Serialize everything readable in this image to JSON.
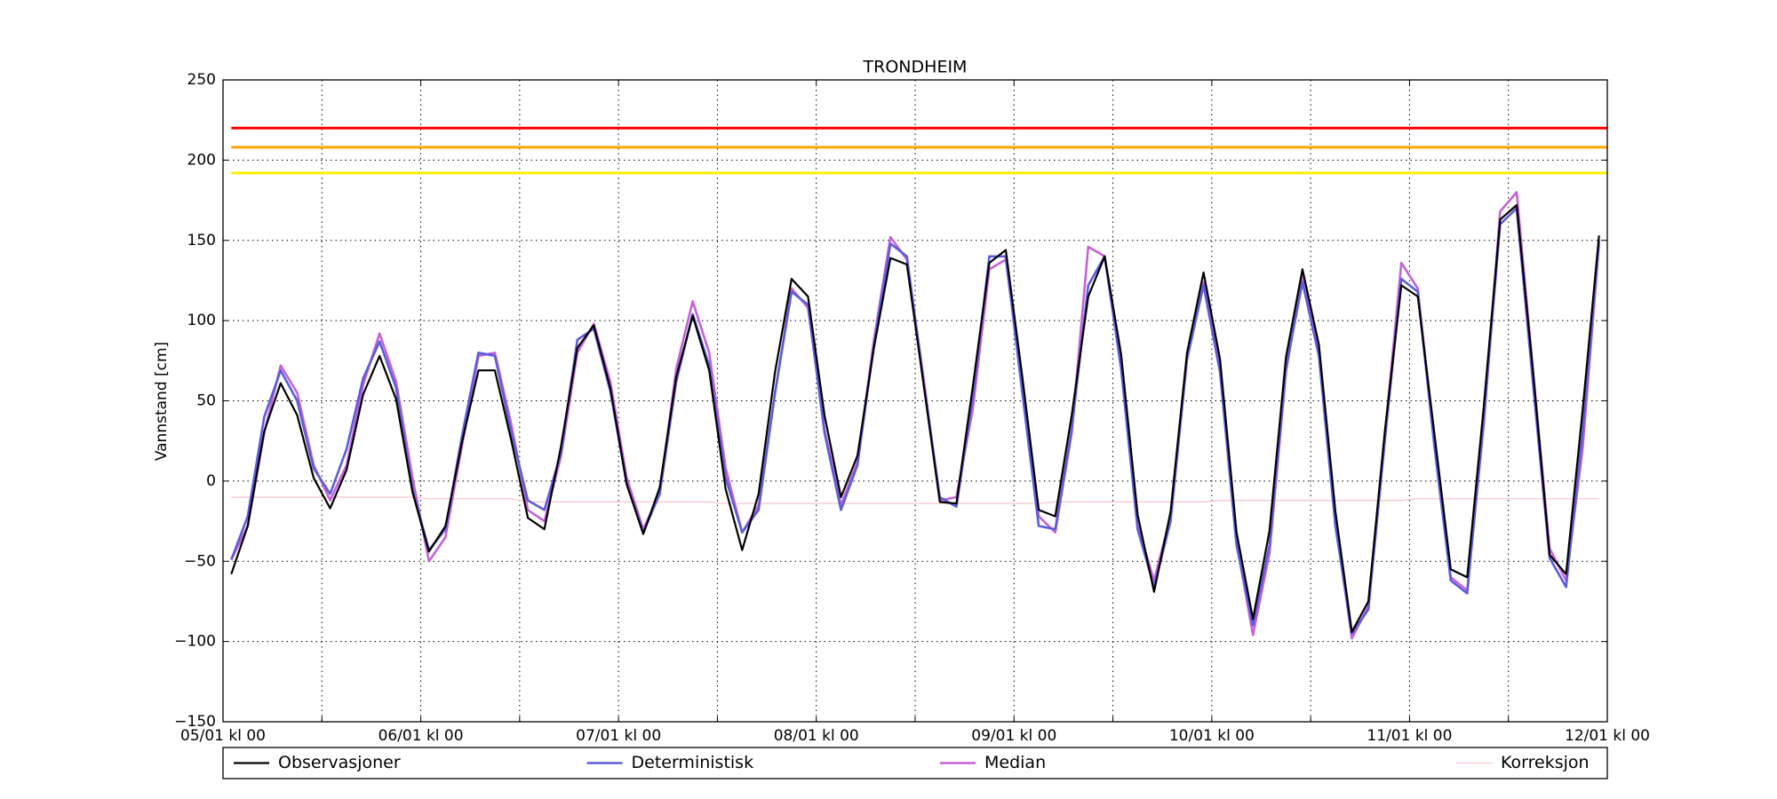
{
  "chart_data": {
    "type": "line",
    "title": "TRONDHEIM",
    "ylabel": "Vannstand [cm]",
    "xlim": [
      0,
      168
    ],
    "ylim": [
      -150,
      250
    ],
    "xticks": [
      {
        "value": 0,
        "label": "05/01 kl 00"
      },
      {
        "value": 24,
        "label": "06/01 kl 00"
      },
      {
        "value": 48,
        "label": "07/01 kl 00"
      },
      {
        "value": 72,
        "label": "08/01 kl 00"
      },
      {
        "value": 96,
        "label": "09/01 kl 00"
      },
      {
        "value": 120,
        "label": "10/01 kl 00"
      },
      {
        "value": 144,
        "label": "11/01 kl 00"
      },
      {
        "value": 168,
        "label": "12/01 kl 00"
      }
    ],
    "xminorticks": [
      12,
      36,
      60,
      84,
      108,
      132,
      156
    ],
    "yticks": [
      {
        "value": -150,
        "label": "−150"
      },
      {
        "value": -100,
        "label": "−100"
      },
      {
        "value": -50,
        "label": "−50"
      },
      0,
      50,
      100,
      150,
      200,
      250
    ],
    "grid": true,
    "legend": "bottom",
    "hlines": [
      {
        "value": 220,
        "color": "#ff0000"
      },
      {
        "value": 208,
        "color": "#ffa500"
      },
      {
        "value": 192,
        "color": "#ffee00"
      }
    ],
    "x": [
      1,
      3,
      5,
      7,
      9,
      11,
      13,
      15,
      17,
      19,
      21,
      23,
      25,
      27,
      29,
      31,
      33,
      35,
      37,
      39,
      41,
      43,
      45,
      47,
      49,
      51,
      53,
      55,
      57,
      59,
      61,
      63,
      65,
      67,
      69,
      71,
      73,
      75,
      77,
      79,
      81,
      83,
      85,
      87,
      89,
      91,
      93,
      95,
      97,
      99,
      101,
      103,
      105,
      107,
      109,
      111,
      113,
      115,
      117,
      119,
      121,
      123,
      125,
      127,
      129,
      131,
      133,
      135,
      137,
      139,
      141,
      143,
      145,
      147,
      149,
      151,
      153,
      155,
      157,
      159,
      161,
      163,
      165,
      167
    ],
    "series": [
      {
        "name": "Observasjoner",
        "color": "#000000",
        "width": 2.2,
        "values": [
          -58,
          -28,
          31,
          61,
          41,
          2,
          -17,
          7,
          54,
          78,
          51,
          -7,
          -44,
          -28,
          24,
          69,
          69,
          25,
          -23,
          -30,
          21,
          83,
          97,
          58,
          -2,
          -33,
          -4,
          65,
          103,
          69,
          -5,
          -43,
          -8,
          68,
          126,
          115,
          41,
          -10,
          16,
          83,
          139,
          135,
          61,
          -13,
          -14,
          59,
          136,
          144,
          65,
          -18,
          -22,
          41,
          115,
          140,
          79,
          -21,
          -69,
          -19,
          80,
          130,
          76,
          -32,
          -86,
          -31,
          77,
          132,
          85,
          -19,
          -94,
          -75,
          31,
          122,
          115,
          30,
          -55,
          -60,
          46,
          163,
          172,
          68,
          -46,
          -58,
          44,
          153
        ]
      },
      {
        "name": "Deterministisk",
        "color": "#5c5cd8",
        "width": 2.6,
        "values": [
          -49,
          -22,
          40,
          69,
          50,
          8,
          -8,
          20,
          64,
          87,
          58,
          -5,
          -43,
          -30,
          28,
          80,
          78,
          30,
          -12,
          -18,
          17,
          88,
          95,
          56,
          -2,
          -32,
          -8,
          62,
          104,
          72,
          2,
          -32,
          -18,
          55,
          118,
          110,
          30,
          -18,
          10,
          85,
          148,
          140,
          62,
          -10,
          -16,
          52,
          140,
          140,
          55,
          -28,
          -30,
          32,
          122,
          140,
          70,
          -30,
          -66,
          -25,
          76,
          122,
          68,
          -40,
          -90,
          -40,
          70,
          124,
          78,
          -28,
          -95,
          -80,
          25,
          126,
          118,
          22,
          -62,
          -70,
          38,
          160,
          170,
          60,
          -48,
          -66,
          30,
          150
        ]
      },
      {
        "name": "Median",
        "color": "#c462d6",
        "width": 2.6,
        "values": [
          -49,
          -28,
          30,
          72,
          55,
          10,
          -12,
          10,
          60,
          92,
          62,
          2,
          -50,
          -35,
          22,
          78,
          80,
          35,
          -18,
          -25,
          15,
          80,
          98,
          62,
          2,
          -30,
          -8,
          70,
          112,
          80,
          8,
          -32,
          -15,
          55,
          120,
          108,
          32,
          -15,
          12,
          88,
          152,
          138,
          65,
          -12,
          -10,
          45,
          132,
          138,
          60,
          -22,
          -32,
          30,
          146,
          140,
          72,
          -28,
          -62,
          -22,
          76,
          124,
          70,
          -38,
          -96,
          -45,
          68,
          128,
          82,
          -25,
          -98,
          -78,
          28,
          136,
          120,
          25,
          -60,
          -68,
          35,
          168,
          180,
          68,
          -42,
          -62,
          20,
          148
        ]
      },
      {
        "name": "Korreksjon",
        "color": "#f6c4cc",
        "width": 1.2,
        "values": [
          -10,
          -10,
          -10,
          -10,
          -10,
          -10,
          -10,
          -10,
          -10,
          -10,
          -10,
          -10,
          -11,
          -11,
          -11,
          -11,
          -11,
          -11,
          -13,
          -13,
          -13,
          -13,
          -13,
          -13,
          -13,
          -13,
          -13,
          -13,
          -13,
          -13,
          -14,
          -14,
          -14,
          -14,
          -14,
          -14,
          -14,
          -14,
          -14,
          -14,
          -14,
          -14,
          -14,
          -14,
          -14,
          -14,
          -14,
          -14,
          -14,
          -14,
          -13,
          -13,
          -13,
          -13,
          -13,
          -13,
          -13,
          -13,
          -13,
          -13,
          -12,
          -12,
          -12,
          -12,
          -12,
          -12,
          -12,
          -12,
          -12,
          -12,
          -12,
          -12,
          -11,
          -11,
          -11,
          -11,
          -11,
          -11,
          -11,
          -11,
          -11,
          -11,
          -11,
          -11
        ]
      }
    ]
  }
}
